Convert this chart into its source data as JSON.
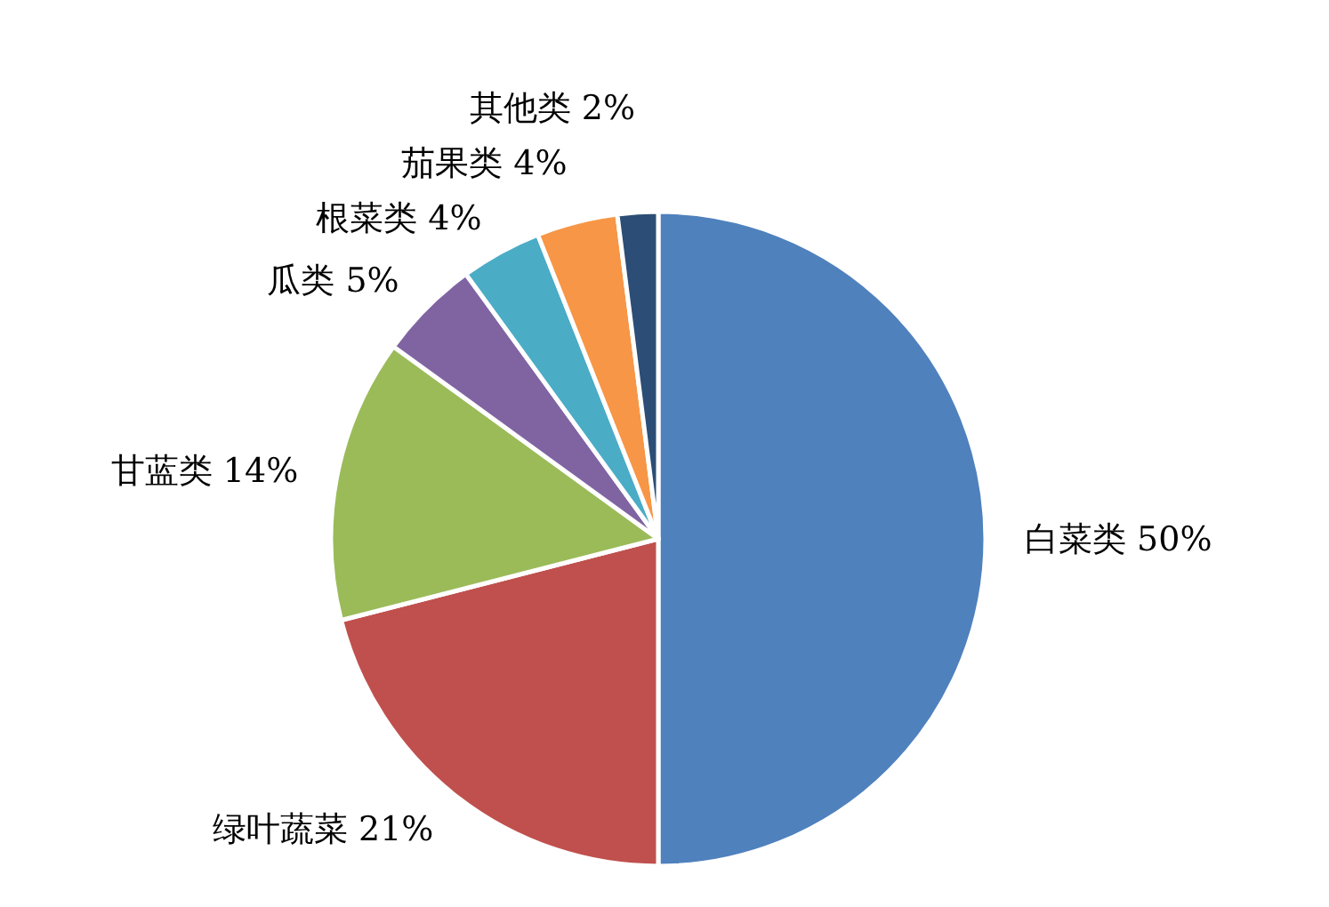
{
  "chart_data": {
    "type": "pie",
    "categories": [
      "白菜类",
      "绿叶蔬菜",
      "甘蓝类",
      "瓜类",
      "根菜类",
      "茄果类",
      "其他类"
    ],
    "values": [
      50,
      21,
      14,
      5,
      4,
      4,
      2
    ],
    "value_labels": [
      "50%",
      "21%",
      "14%",
      "5%",
      "4%",
      "4%",
      "2%"
    ],
    "colors": [
      "#4f81bd",
      "#c0504d",
      "#9bbb59",
      "#8064a2",
      "#4bacc6",
      "#f79646",
      "#2c4d75"
    ],
    "legend": false
  }
}
